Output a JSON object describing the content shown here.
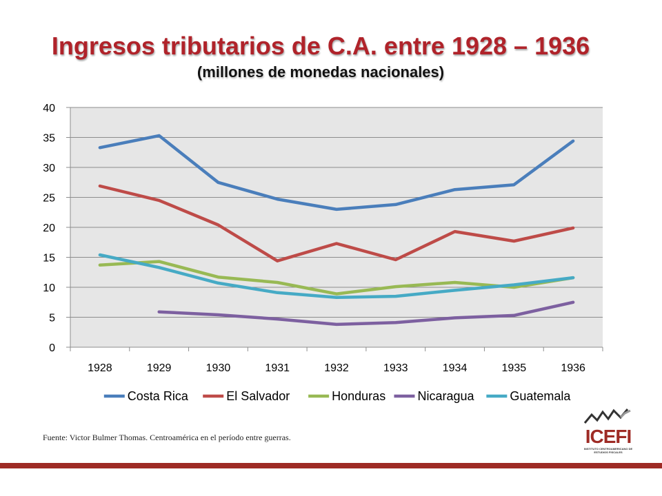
{
  "header": {
    "title": "Ingresos tributarios de C.A. entre 1928 – 1936",
    "subtitle": "(millones de monedas nacionales)"
  },
  "footer": {
    "source": "Fuente: Victor Bulmer Thomas. Centroamérica en el período entre guerras.",
    "logo_text": "ICEFI",
    "logo_subtext": "INSTITUTO CENTROAMERICANO DE ESTUDIOS FISCALES"
  },
  "chart_data": {
    "type": "line",
    "title": "",
    "xlabel": "",
    "ylabel": "",
    "categories": [
      "1928",
      "1929",
      "1930",
      "1931",
      "1932",
      "1933",
      "1934",
      "1935",
      "1936"
    ],
    "ylim": [
      0,
      40
    ],
    "yticks": [
      0,
      5,
      10,
      15,
      20,
      25,
      30,
      35,
      40
    ],
    "grid": true,
    "legend": "bottom",
    "series": [
      {
        "name": "Costa Rica",
        "color": "#4a7ebb",
        "values": [
          33.3,
          35.3,
          27.5,
          24.7,
          23.0,
          23.8,
          26.3,
          27.1,
          34.4
        ]
      },
      {
        "name": "El Salvador",
        "color": "#be4b48",
        "values": [
          26.9,
          24.5,
          20.4,
          14.4,
          17.3,
          14.6,
          19.3,
          17.7,
          19.9
        ]
      },
      {
        "name": "Honduras",
        "color": "#98b954",
        "values": [
          13.7,
          14.3,
          11.7,
          10.8,
          8.9,
          10.1,
          10.8,
          10.0,
          11.6
        ]
      },
      {
        "name": "Nicaragua",
        "color": "#7d60a0",
        "values": [
          null,
          5.9,
          5.4,
          4.7,
          3.8,
          4.1,
          4.9,
          5.3,
          7.5
        ]
      },
      {
        "name": "Guatemala",
        "color": "#46aac5",
        "values": [
          15.4,
          13.3,
          10.7,
          9.1,
          8.3,
          8.5,
          9.5,
          10.4,
          11.6
        ]
      }
    ]
  }
}
